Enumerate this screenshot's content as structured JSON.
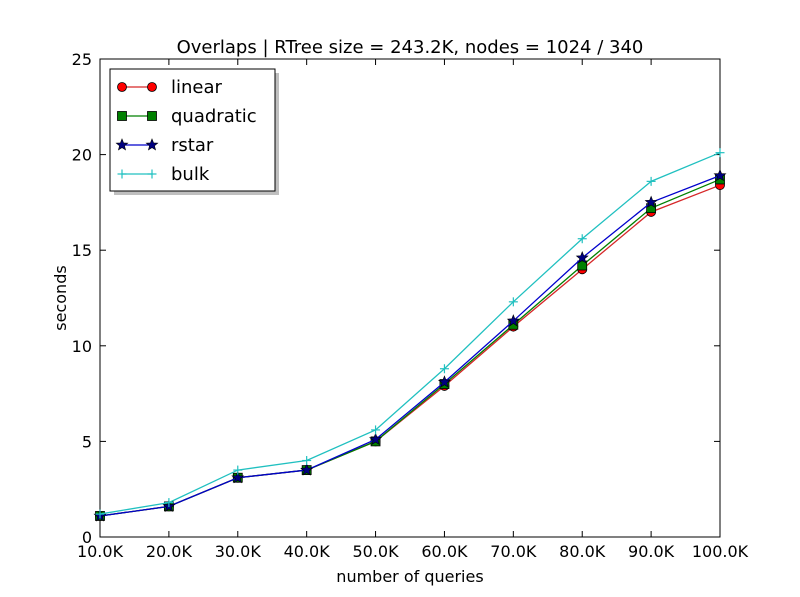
{
  "chart_data": {
    "type": "line",
    "title": "Overlaps | RTree size = 243.2K, nodes = 1024 / 340",
    "xlabel": "number of queries",
    "ylabel": "seconds",
    "categories": [
      "10.0K",
      "20.0K",
      "30.0K",
      "40.0K",
      "50.0K",
      "60.0K",
      "70.0K",
      "80.0K",
      "90.0K",
      "100.0K"
    ],
    "ylim": [
      0,
      25
    ],
    "yticks": [
      "0",
      "5",
      "10",
      "15",
      "20",
      "25"
    ],
    "grid": false,
    "legend_position": "top-left",
    "series": [
      {
        "name": "linear",
        "color": "#ff0000",
        "line_color": "#d62728",
        "marker": "circle",
        "values": [
          1.1,
          1.6,
          3.1,
          3.5,
          5.0,
          7.9,
          11.0,
          14.0,
          17.0,
          18.4
        ]
      },
      {
        "name": "quadratic",
        "color": "#008000",
        "line_color": "#008000",
        "marker": "square",
        "values": [
          1.1,
          1.6,
          3.1,
          3.5,
          5.0,
          8.0,
          11.1,
          14.2,
          17.2,
          18.7
        ]
      },
      {
        "name": "rstar",
        "color": "#000080",
        "line_color": "#0000cc",
        "marker": "star",
        "values": [
          1.1,
          1.6,
          3.1,
          3.5,
          5.1,
          8.1,
          11.3,
          14.6,
          17.5,
          18.9
        ]
      },
      {
        "name": "bulk",
        "color": "#20c0c0",
        "line_color": "#20c0c0",
        "marker": "plus",
        "values": [
          1.2,
          1.8,
          3.5,
          4.0,
          5.6,
          8.8,
          12.3,
          15.6,
          18.6,
          20.1
        ]
      }
    ]
  }
}
